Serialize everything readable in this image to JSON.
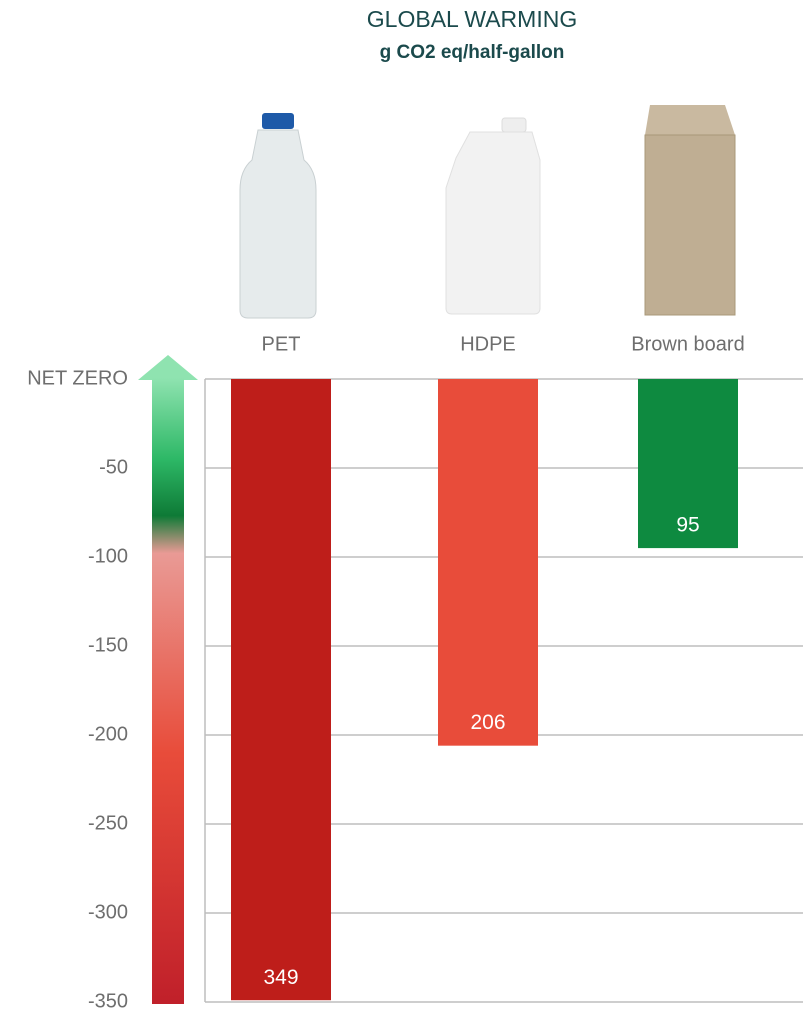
{
  "chart_data": {
    "type": "bar",
    "title": "GLOBAL WARMING",
    "subtitle": "g CO2 eq/half-gallon",
    "categories": [
      "PET",
      "HDPE",
      "Brown board"
    ],
    "values": [
      -349,
      -206,
      -95
    ],
    "value_labels": [
      "349",
      "206",
      "95"
    ],
    "colors": [
      "#be1e1a",
      "#e84c3a",
      "#0e8a40"
    ],
    "ylim": [
      -350,
      0
    ],
    "yticks": [
      {
        "value": 0,
        "label": "NET ZERO"
      },
      -50,
      -100,
      -150,
      -200,
      -250,
      -300,
      -350
    ],
    "grid": true
  }
}
